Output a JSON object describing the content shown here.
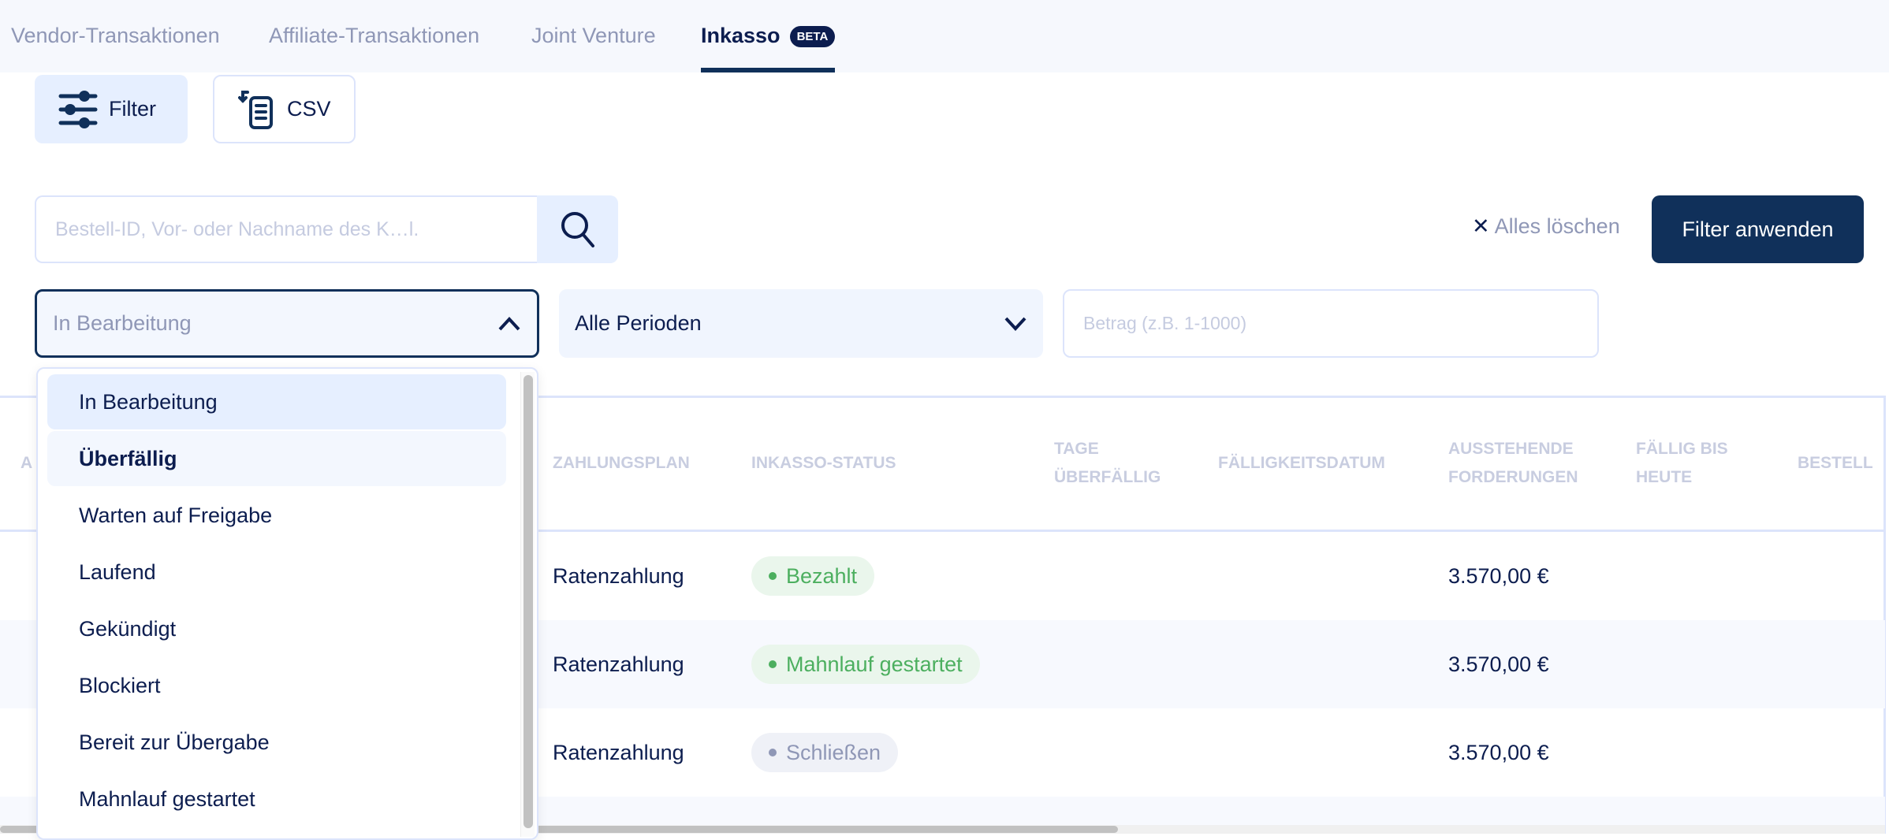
{
  "tabs": [
    {
      "label": "Vendor-Transaktionen"
    },
    {
      "label": "Affiliate-Transaktionen"
    },
    {
      "label": "Joint Venture"
    },
    {
      "label": "Inkasso",
      "badge": "BETA",
      "active": true
    }
  ],
  "toolbar": {
    "filter_label": "Filter",
    "csv_label": "CSV"
  },
  "search": {
    "placeholder": "Bestell-ID, Vor- oder Nachname des K…l.",
    "value": ""
  },
  "actions": {
    "clear_label": "Alles löschen",
    "apply_label": "Filter anwenden"
  },
  "filters": {
    "status": "In Bearbeitung",
    "period": "Alle Perioden",
    "amount_placeholder": "Betrag (z.B. 1-1000)"
  },
  "dropdown": {
    "options": [
      "In Bearbeitung",
      "Überfällig",
      "Warten auf Freigabe",
      "Laufend",
      "Gekündigt",
      "Blockiert",
      "Bereit zur Übergabe",
      "Mahnlauf gestartet"
    ],
    "selected": "In Bearbeitung",
    "hovered": "Überfällig"
  },
  "table": {
    "headers": {
      "a": "A",
      "plan": "Zahlungsplan",
      "status": "Inkasso-Status",
      "days1": "Tage",
      "days2": "Überfällig",
      "due": "Fälligkeitsdatum",
      "out1": "Ausstehende",
      "out2": "Forderungen",
      "today1": "Fällig bis",
      "today2": "Heute",
      "order": "Bestell"
    },
    "rows": [
      {
        "plan": "Ratenzahlung",
        "status": "Bezahlt",
        "status_color": "#4caf5f",
        "amount": "3.570,00 €"
      },
      {
        "plan": "Ratenzahlung",
        "status": "Mahnlauf gestartet",
        "status_color": "#4caf5f",
        "amount": "3.570,00 €"
      },
      {
        "plan": "Ratenzahlung",
        "status": "Schließen",
        "status_color": "#8f97b6",
        "amount": "3.570,00 €"
      }
    ]
  },
  "colors": {
    "primary": "#10305a",
    "text": "#0c1d4f",
    "muted": "#8f97b6",
    "light_bg": "#f6f8fd"
  }
}
